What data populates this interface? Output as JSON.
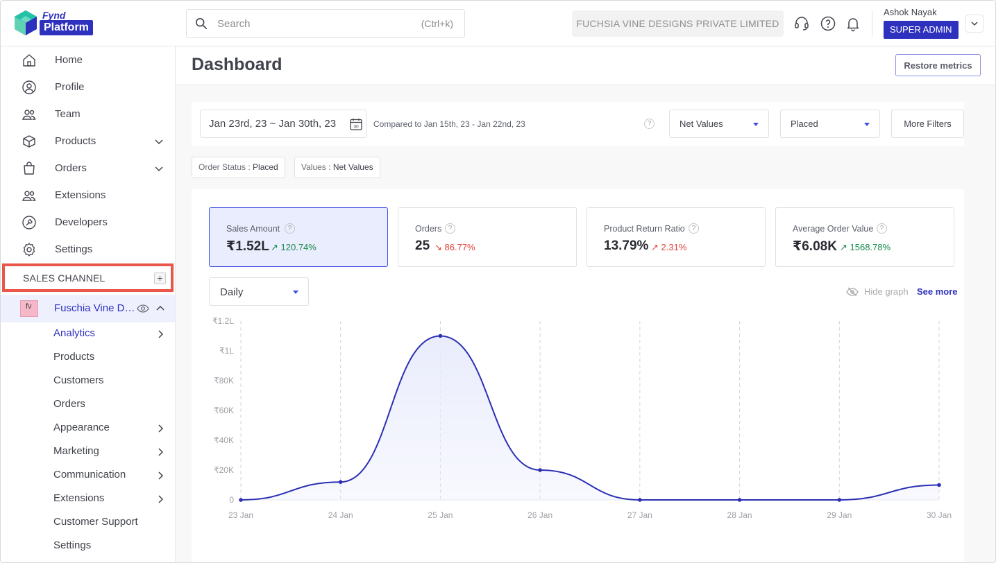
{
  "brand": {
    "top": "Fynd",
    "pill": "Platform"
  },
  "search": {
    "placeholder": "Search",
    "shortcut": "(Ctrl+k)"
  },
  "header": {
    "company": "FUCHSIA VINE DESIGNS PRIVATE LIMITED",
    "user_name": "Ashok Nayak",
    "role": "SUPER ADMIN"
  },
  "sidebar": {
    "items": [
      {
        "label": "Home",
        "icon": "home-icon"
      },
      {
        "label": "Profile",
        "icon": "profile-icon"
      },
      {
        "label": "Team",
        "icon": "team-icon"
      },
      {
        "label": "Products",
        "icon": "products-icon"
      },
      {
        "label": "Orders",
        "icon": "orders-icon"
      },
      {
        "label": "Extensions",
        "icon": "extensions-icon"
      },
      {
        "label": "Developers",
        "icon": "developers-icon"
      },
      {
        "label": "Settings",
        "icon": "settings-icon"
      }
    ],
    "sales_channel_label": "SALES CHANNEL",
    "add_label": "+",
    "channel": {
      "name": "Fuschia Vine Designs",
      "thumb": "fv"
    },
    "sub_items": [
      {
        "label": "Analytics"
      },
      {
        "label": "Products"
      },
      {
        "label": "Customers"
      },
      {
        "label": "Orders"
      },
      {
        "label": "Appearance"
      },
      {
        "label": "Marketing"
      },
      {
        "label": "Communication"
      },
      {
        "label": "Extensions"
      },
      {
        "label": "Customer Support"
      },
      {
        "label": "Settings"
      }
    ]
  },
  "page": {
    "title": "Dashboard",
    "restore_label": "Restore metrics"
  },
  "filters": {
    "date_range": "Jan 23rd, 23 ~ Jan 30th, 23",
    "calendar_day": "30",
    "compared_text": "Compared to Jan 15th, 23 - Jan 22nd, 23",
    "help": "?",
    "values_select": "Net Values",
    "status_select": "Placed",
    "more_filters_label": "More Filters",
    "chips": [
      {
        "key": "Order Status : ",
        "value": "Placed"
      },
      {
        "key": "Values : ",
        "value": "Net Values"
      }
    ]
  },
  "metrics": [
    {
      "label": "Sales Amount",
      "value": "₹1.52L",
      "delta": "120.74%",
      "direction": "up"
    },
    {
      "label": "Orders",
      "value": "25",
      "delta": "86.77%",
      "direction": "down"
    },
    {
      "label": "Product Return Ratio",
      "value": "13.79%",
      "delta": "2.31%",
      "direction": "up-red"
    },
    {
      "label": "Average Order Value",
      "value": "₹6.08K",
      "delta": "1568.78%",
      "direction": "up"
    }
  ],
  "graph_controls": {
    "period": "Daily",
    "hide_graph_label": "Hide graph",
    "see_more_label": "See more"
  },
  "colors": {
    "accent": "#2e31be",
    "line": "#2b2fb3",
    "fill": "#e8ebfc",
    "up": "#16884a",
    "down": "#e0413b",
    "highlight": "#e8574a"
  },
  "chart_data": {
    "type": "area",
    "x": [
      "23 Jan",
      "24 Jan",
      "25 Jan",
      "26 Jan",
      "27 Jan",
      "28 Jan",
      "29 Jan",
      "30 Jan"
    ],
    "series": [
      {
        "values": [
          0,
          12000,
          110000,
          20000,
          0,
          0,
          0,
          10000
        ]
      }
    ],
    "yticks": [
      0,
      20000,
      40000,
      60000,
      80000,
      100000,
      120000
    ],
    "ytick_labels": [
      "0",
      "₹20K",
      "₹40K",
      "₹60K",
      "₹80K",
      "₹1L",
      "₹1.2L"
    ],
    "ylim": [
      0,
      120000
    ],
    "grid": "vertical-dashed"
  }
}
